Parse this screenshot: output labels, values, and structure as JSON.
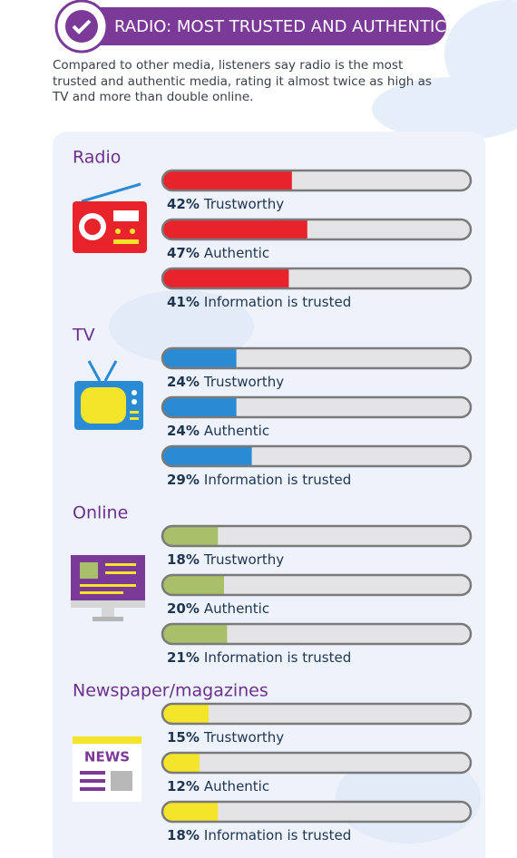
{
  "header": {
    "title": "RADIO: MOST TRUSTED AND AUTHENTIC",
    "intro": "Compared to other media, listeners say radio is the most trusted and authentic media, rating it almost twice as high as TV and more than double online."
  },
  "icons": {
    "newspaper": "NEWS"
  },
  "chart_data": [
    {
      "type": "bar",
      "title": "Radio",
      "categories": [
        "Trustworthy",
        "Authentic",
        "Information is trusted"
      ],
      "values": [
        42,
        47,
        41
      ],
      "value_labels": [
        "42%",
        "47%",
        "41%"
      ],
      "color": "#e8232b",
      "xlim": [
        0,
        100
      ]
    },
    {
      "type": "bar",
      "title": "TV",
      "categories": [
        "Trustworthy",
        "Authentic",
        "Information is trusted"
      ],
      "values": [
        24,
        24,
        29
      ],
      "value_labels": [
        "24%",
        "24%",
        "29%"
      ],
      "color": "#2a8ad4",
      "xlim": [
        0,
        100
      ]
    },
    {
      "type": "bar",
      "title": "Online",
      "categories": [
        "Trustworthy",
        "Authentic",
        "Information is trusted"
      ],
      "values": [
        18,
        20,
        21
      ],
      "value_labels": [
        "18%",
        "20%",
        "21%"
      ],
      "color": "#a9bf6a",
      "xlim": [
        0,
        100
      ]
    },
    {
      "type": "bar",
      "title": "Newspaper/magazines",
      "categories": [
        "Trustworthy",
        "Authentic",
        "Information is trusted"
      ],
      "values": [
        15,
        12,
        18
      ],
      "value_labels": [
        "15%",
        "12%",
        "18%"
      ],
      "color": "#f5e52a",
      "xlim": [
        0,
        100
      ]
    }
  ]
}
